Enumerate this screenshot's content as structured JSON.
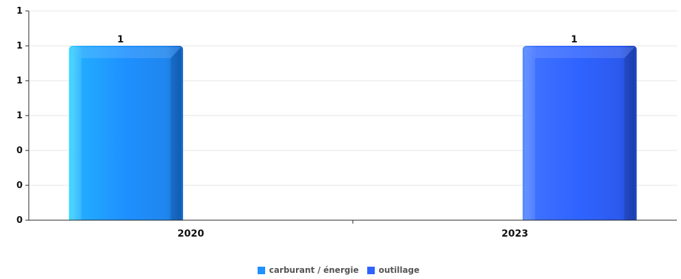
{
  "chart_data": {
    "type": "bar",
    "categories": [
      "2020",
      "2023"
    ],
    "series": [
      {
        "name": "carburant / énergie",
        "values": [
          1,
          null
        ],
        "color": "#1e90ff"
      },
      {
        "name": "outillage",
        "values": [
          null,
          1
        ],
        "color": "#2f63ff"
      }
    ],
    "value_labels": [
      "1",
      "1"
    ],
    "y_ticks": [
      {
        "value": 0,
        "label": "0"
      },
      {
        "value": 0.2,
        "label": "0"
      },
      {
        "value": 0.4,
        "label": "0"
      },
      {
        "value": 0.6,
        "label": "1"
      },
      {
        "value": 0.8,
        "label": "1"
      },
      {
        "value": 1.0,
        "label": "1"
      },
      {
        "value": 1.2,
        "label": "1"
      }
    ],
    "ylim": [
      0,
      1.2
    ],
    "grid": true,
    "legend_position": "bottom-center"
  },
  "legend": {
    "items": [
      {
        "label": "carburant / énergie",
        "color": "#1e90ff"
      },
      {
        "label": "outillage",
        "color": "#2f63ff"
      }
    ]
  }
}
